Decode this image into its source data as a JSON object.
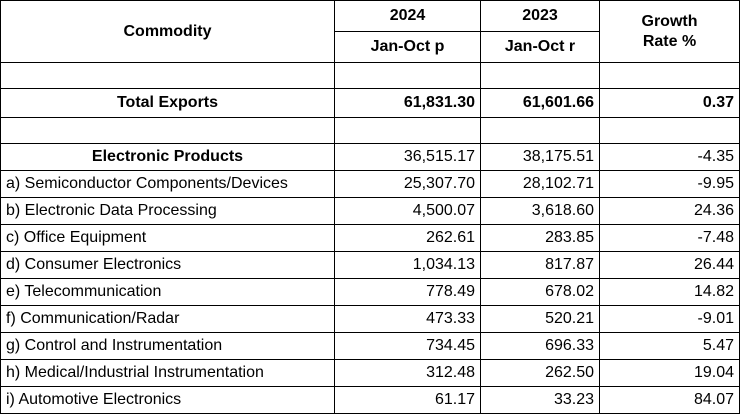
{
  "header": {
    "commodity": "Commodity",
    "year_current": "2024",
    "year_previous": "2023",
    "period_current": "Jan-Oct p",
    "period_previous": "Jan-Oct r",
    "growth_line1": "Growth",
    "growth_line2": "Rate %"
  },
  "total": {
    "label": "Total Exports",
    "current": "61,831.30",
    "previous": "61,601.66",
    "growth": "0.37"
  },
  "category": {
    "label": "Electronic Products",
    "current": "36,515.17",
    "previous": "38,175.51",
    "growth": "-4.35"
  },
  "rows": [
    {
      "label": "a) Semiconductor Components/Devices",
      "current": "25,307.70",
      "previous": "28,102.71",
      "growth": "-9.95"
    },
    {
      "label": "b) Electronic Data Processing",
      "current": "4,500.07",
      "previous": "3,618.60",
      "growth": "24.36"
    },
    {
      "label": "c) Office Equipment",
      "current": "262.61",
      "previous": "283.85",
      "growth": "-7.48"
    },
    {
      "label": "d) Consumer Electronics",
      "current": "1,034.13",
      "previous": "817.87",
      "growth": "26.44"
    },
    {
      "label": "e) Telecommunication",
      "current": "778.49",
      "previous": "678.02",
      "growth": "14.82"
    },
    {
      "label": "f) Communication/Radar",
      "current": "473.33",
      "previous": "520.21",
      "growth": "-9.01"
    },
    {
      "label": "g) Control and Instrumentation",
      "current": "734.45",
      "previous": "696.33",
      "growth": "5.47"
    },
    {
      "label": "h) Medical/Industrial Instrumentation",
      "current": "312.48",
      "previous": "262.50",
      "growth": "19.04"
    },
    {
      "label": "i) Automotive Electronics",
      "current": "61.17",
      "previous": "33.23",
      "growth": "84.07"
    }
  ]
}
